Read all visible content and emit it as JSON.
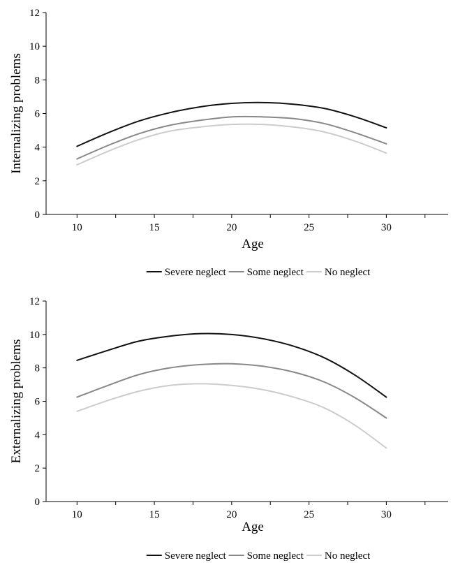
{
  "chart_data": [
    {
      "type": "line",
      "xlabel": "Age",
      "ylabel": "Internalizing problems",
      "xlim": [
        8,
        34
      ],
      "ylim": [
        0,
        12
      ],
      "xticks": [
        10,
        15,
        20,
        25,
        30
      ],
      "yticks": [
        0,
        2,
        4,
        6,
        8,
        10,
        12
      ],
      "grid": false,
      "legend": "bottom",
      "x": [
        10,
        12,
        14,
        16,
        18,
        20,
        22,
        24,
        26,
        28,
        30
      ],
      "series": [
        {
          "name": "Severe neglect",
          "color": "#111111",
          "values": [
            4.05,
            4.85,
            5.55,
            6.05,
            6.4,
            6.6,
            6.65,
            6.55,
            6.3,
            5.8,
            5.15
          ]
        },
        {
          "name": "Some neglect",
          "color": "#888888",
          "values": [
            3.3,
            4.1,
            4.8,
            5.3,
            5.6,
            5.8,
            5.8,
            5.7,
            5.4,
            4.85,
            4.2
          ]
        },
        {
          "name": "No neglect",
          "color": "#cccccc",
          "values": [
            2.95,
            3.75,
            4.45,
            4.95,
            5.2,
            5.35,
            5.35,
            5.2,
            4.9,
            4.35,
            3.65
          ]
        }
      ]
    },
    {
      "type": "line",
      "xlabel": "Age",
      "ylabel": "Externalizing problems",
      "xlim": [
        8,
        34
      ],
      "ylim": [
        0,
        12
      ],
      "xticks": [
        10,
        15,
        20,
        25,
        30
      ],
      "yticks": [
        0,
        2,
        4,
        6,
        8,
        10,
        12
      ],
      "grid": false,
      "legend": "bottom",
      "x": [
        10,
        12,
        14,
        16,
        18,
        20,
        22,
        24,
        26,
        28,
        30
      ],
      "series": [
        {
          "name": "Severe neglect",
          "color": "#111111",
          "values": [
            8.45,
            9.05,
            9.6,
            9.9,
            10.05,
            10.0,
            9.75,
            9.3,
            8.6,
            7.55,
            6.25
          ]
        },
        {
          "name": "Some neglect",
          "color": "#888888",
          "values": [
            6.25,
            6.95,
            7.6,
            8.0,
            8.2,
            8.25,
            8.1,
            7.75,
            7.15,
            6.2,
            5.0
          ]
        },
        {
          "name": "No neglect",
          "color": "#cccccc",
          "values": [
            5.4,
            6.05,
            6.6,
            6.95,
            7.05,
            6.95,
            6.7,
            6.25,
            5.6,
            4.55,
            3.2
          ]
        }
      ]
    }
  ]
}
